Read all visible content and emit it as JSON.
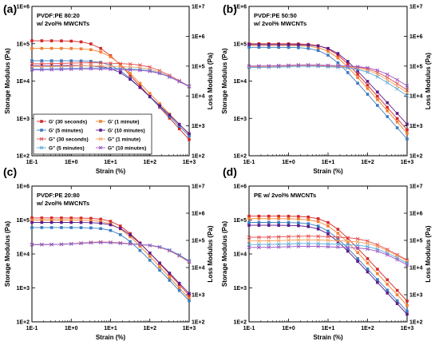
{
  "figure": {
    "colors": {
      "g_prime_30s": "#d62728",
      "g_prime_1min": "#f28030",
      "g_prime_5min": "#3b7cc0",
      "g_prime_10min": "#5b1a8a",
      "g_dprime_30s": "#e34b4b",
      "g_dprime_1min": "#f5a060",
      "g_dprime_5min": "#5aa8d8",
      "g_dprime_10min": "#9a55c5"
    }
  },
  "legend": {
    "items": [
      {
        "label": "G' (30 seconds)",
        "marker": "square",
        "color": "#d62728"
      },
      {
        "label": "G' (1 minute)",
        "marker": "square",
        "color": "#f28030"
      },
      {
        "label": "G' (5 minutes)",
        "marker": "square",
        "color": "#3b7cc0"
      },
      {
        "label": "G' (10 minutes)",
        "marker": "square",
        "color": "#5b1a8a"
      },
      {
        "label": "G\" (30 seconds)",
        "marker": "x",
        "color": "#e34b4b"
      },
      {
        "label": "G\" (1 minute)",
        "marker": "x",
        "color": "#f5a060"
      },
      {
        "label": "G\" (5 minutes)",
        "marker": "x",
        "color": "#5aa8d8"
      },
      {
        "label": "G\" (10 minutes)",
        "marker": "x",
        "color": "#9a55c5"
      }
    ]
  },
  "chart_data": [
    {
      "type": "line",
      "panel_label": "(a)",
      "title": "PVDF:PE 80:20",
      "subtitle": "w/ 2vol% MWCNTs",
      "xlabel": "Strain (%)",
      "ylabel_left": "Storage Modulus (Pa)",
      "ylabel_right": "Loss Modulus (Pa)",
      "x_scale": "log",
      "y_scale": "log",
      "xlim": [
        0.1,
        1000
      ],
      "ylim_left": [
        100,
        1000000
      ],
      "ylim_right": [
        100,
        10000000
      ],
      "x_ticks": [
        "1E-1",
        "1E+0",
        "1E+1",
        "1E+2",
        "1E+3"
      ],
      "y_ticks_left": [
        "1E+2",
        "1E+3",
        "1E+4",
        "1E+5",
        "1E+6"
      ],
      "y_ticks_right": [
        "1E+2",
        "1E+3",
        "1E+4",
        "1E+5",
        "1E+6",
        "1E+7"
      ],
      "show_legend": true,
      "series": [
        {
          "name": "G' (30 seconds)",
          "g0": 120000,
          "xc": 5,
          "slope": 1.15
        },
        {
          "name": "G' (1 minute)",
          "g0": 75000,
          "xc": 8,
          "slope": 1.1
        },
        {
          "name": "G' (5 minutes)",
          "g0": 35000,
          "xc": 12,
          "slope": 1.05
        },
        {
          "name": "G' (10 minutes)",
          "g0": 26000,
          "xc": 15,
          "slope": 1.0
        },
        {
          "name": "G\" (30 seconds)",
          "g0": 120000,
          "peak_x": 3,
          "peak_f": 1.08,
          "xc": 100,
          "slope": 0.75
        },
        {
          "name": "G\" (1 minute)",
          "g0": 95000,
          "peak_x": 3,
          "peak_f": 1.08,
          "xc": 120,
          "slope": 0.72
        },
        {
          "name": "G\" (5 minutes)",
          "g0": 80000,
          "peak_x": 3,
          "peak_f": 1.08,
          "xc": 150,
          "slope": 0.7
        },
        {
          "name": "G\" (10 minutes)",
          "g0": 75000,
          "peak_x": 3,
          "peak_f": 1.08,
          "xc": 160,
          "slope": 0.7
        }
      ]
    },
    {
      "type": "line",
      "panel_label": "(b)",
      "title": "PVDF:PE 50:50",
      "subtitle": "w/ 2vol% MWCNTs",
      "xlabel": "Strain (%)",
      "ylabel_left": "Storage Modulus (Pa)",
      "ylabel_right": "Loss Modulus (Pa)",
      "x_scale": "log",
      "y_scale": "log",
      "xlim": [
        0.1,
        1000
      ],
      "ylim_left": [
        100,
        1000000
      ],
      "ylim_right": [
        100,
        10000000
      ],
      "x_ticks": [
        "1E-1",
        "1E+0",
        "1E+1",
        "1E+2",
        "1E+3"
      ],
      "y_ticks_left": [
        "1E+2",
        "1E+3",
        "1E+4",
        "1E+5",
        "1E+6"
      ],
      "y_ticks_right": [
        "1E+2",
        "1E+3",
        "1E+4",
        "1E+5",
        "1E+6",
        "1E+7"
      ],
      "show_legend": false,
      "series": [
        {
          "name": "G' (30 seconds)",
          "g0": 100000,
          "xc": 12,
          "slope": 1.2
        },
        {
          "name": "G' (1 minute)",
          "g0": 90000,
          "xc": 11,
          "slope": 1.2
        },
        {
          "name": "G' (5 minutes)",
          "g0": 80000,
          "xc": 9,
          "slope": 1.2
        },
        {
          "name": "G' (10 minutes)",
          "g0": 95000,
          "xc": 14,
          "slope": 1.15
        },
        {
          "name": "G\" (30 seconds)",
          "g0": 100000,
          "peak_x": 3,
          "peak_f": 1.1,
          "xc": 130,
          "slope": 0.9
        },
        {
          "name": "G\" (1 minute)",
          "g0": 95000,
          "peak_x": 3,
          "peak_f": 1.1,
          "xc": 110,
          "slope": 0.9
        },
        {
          "name": "G\" (5 minutes)",
          "g0": 90000,
          "peak_x": 3,
          "peak_f": 1.1,
          "xc": 90,
          "slope": 0.9
        },
        {
          "name": "G\" (10 minutes)",
          "g0": 100000,
          "peak_x": 3,
          "peak_f": 1.1,
          "xc": 170,
          "slope": 0.85
        }
      ]
    },
    {
      "type": "line",
      "panel_label": "(c)",
      "title": "PVDF:PE 20:80",
      "subtitle": "w/ 2vol% MWCNTs",
      "xlabel": "Strain (%)",
      "ylabel_left": "Storage Modulus (Pa)",
      "ylabel_right": "Loss Modulus (Pa)",
      "x_scale": "log",
      "y_scale": "log",
      "xlim": [
        0.1,
        1000
      ],
      "ylim_left": [
        100,
        1000000
      ],
      "ylim_right": [
        100,
        10000000
      ],
      "x_ticks": [
        "1E-1",
        "1E+0",
        "1E+1",
        "1E+2",
        "1E+3"
      ],
      "y_ticks_left": [
        "1E+2",
        "1E+3",
        "1E+4",
        "1E+5",
        "1E+6"
      ],
      "y_ticks_right": [
        "1E+2",
        "1E+3",
        "1E+4",
        "1E+5",
        "1E+6",
        "1E+7"
      ],
      "show_legend": false,
      "series": [
        {
          "name": "G' (30 seconds)",
          "g0": 115000,
          "xc": 15,
          "slope": 1.25
        },
        {
          "name": "G' (1 minute)",
          "g0": 100000,
          "xc": 14,
          "slope": 1.25
        },
        {
          "name": "G' (5 minutes)",
          "g0": 60000,
          "xc": 16,
          "slope": 1.2
        },
        {
          "name": "G' (10 minutes)",
          "g0": 85000,
          "xc": 18,
          "slope": 1.2
        },
        {
          "name": "G\" (30 seconds)",
          "g0": 70000,
          "peak_x": 6,
          "peak_f": 1.25,
          "xc": 250,
          "slope": 1.0
        },
        {
          "name": "G\" (1 minute)",
          "g0": 70000,
          "peak_x": 6,
          "peak_f": 1.22,
          "xc": 230,
          "slope": 1.0
        },
        {
          "name": "G\" (5 minutes)",
          "g0": 70000,
          "peak_x": 6,
          "peak_f": 1.2,
          "xc": 260,
          "slope": 1.0
        },
        {
          "name": "G\" (10 minutes)",
          "g0": 70000,
          "peak_x": 6,
          "peak_f": 1.2,
          "xc": 240,
          "slope": 1.0
        }
      ]
    },
    {
      "type": "line",
      "panel_label": "(d)",
      "title": "PE w/ 2vol% MWCNTs",
      "subtitle": "",
      "xlabel": "Strain (%)",
      "ylabel_left": "Storage Modulus (Pa)",
      "ylabel_right": "Loss Modulus (Pa)",
      "x_scale": "log",
      "y_scale": "log",
      "xlim": [
        0.1,
        1000
      ],
      "ylim_left": [
        100,
        1000000
      ],
      "ylim_right": [
        100,
        10000000
      ],
      "x_ticks": [
        "1E-1",
        "1E+0",
        "1E+1",
        "1E+2",
        "1E+3"
      ],
      "y_ticks_left": [
        "1E+2",
        "1E+3",
        "1E+4",
        "1E+5",
        "1E+6"
      ],
      "y_ticks_right": [
        "1E+2",
        "1E+3",
        "1E+4",
        "1E+5",
        "1E+6",
        "1E+7"
      ],
      "show_legend": false,
      "series": [
        {
          "name": "G' (30 seconds)",
          "g0": 130000,
          "xc": 10,
          "slope": 1.25
        },
        {
          "name": "G' (1 minute)",
          "g0": 110000,
          "xc": 9,
          "slope": 1.25
        },
        {
          "name": "G' (5 minutes)",
          "g0": 85000,
          "xc": 8,
          "slope": 1.25
        },
        {
          "name": "G' (10 minutes)",
          "g0": 70000,
          "xc": 8,
          "slope": 1.25
        },
        {
          "name": "G\" (30 seconds)",
          "g0": 130000,
          "peak_x": 3,
          "peak_f": 1.1,
          "xc": 90,
          "slope": 0.8
        },
        {
          "name": "G\" (1 minute)",
          "g0": 95000,
          "peak_x": 3,
          "peak_f": 1.1,
          "xc": 120,
          "slope": 0.8
        },
        {
          "name": "G\" (5 minutes)",
          "g0": 70000,
          "peak_x": 3,
          "peak_f": 1.1,
          "xc": 140,
          "slope": 0.8
        },
        {
          "name": "G\" (10 minutes)",
          "g0": 55000,
          "peak_x": 3,
          "peak_f": 1.1,
          "xc": 160,
          "slope": 0.8
        }
      ]
    }
  ]
}
